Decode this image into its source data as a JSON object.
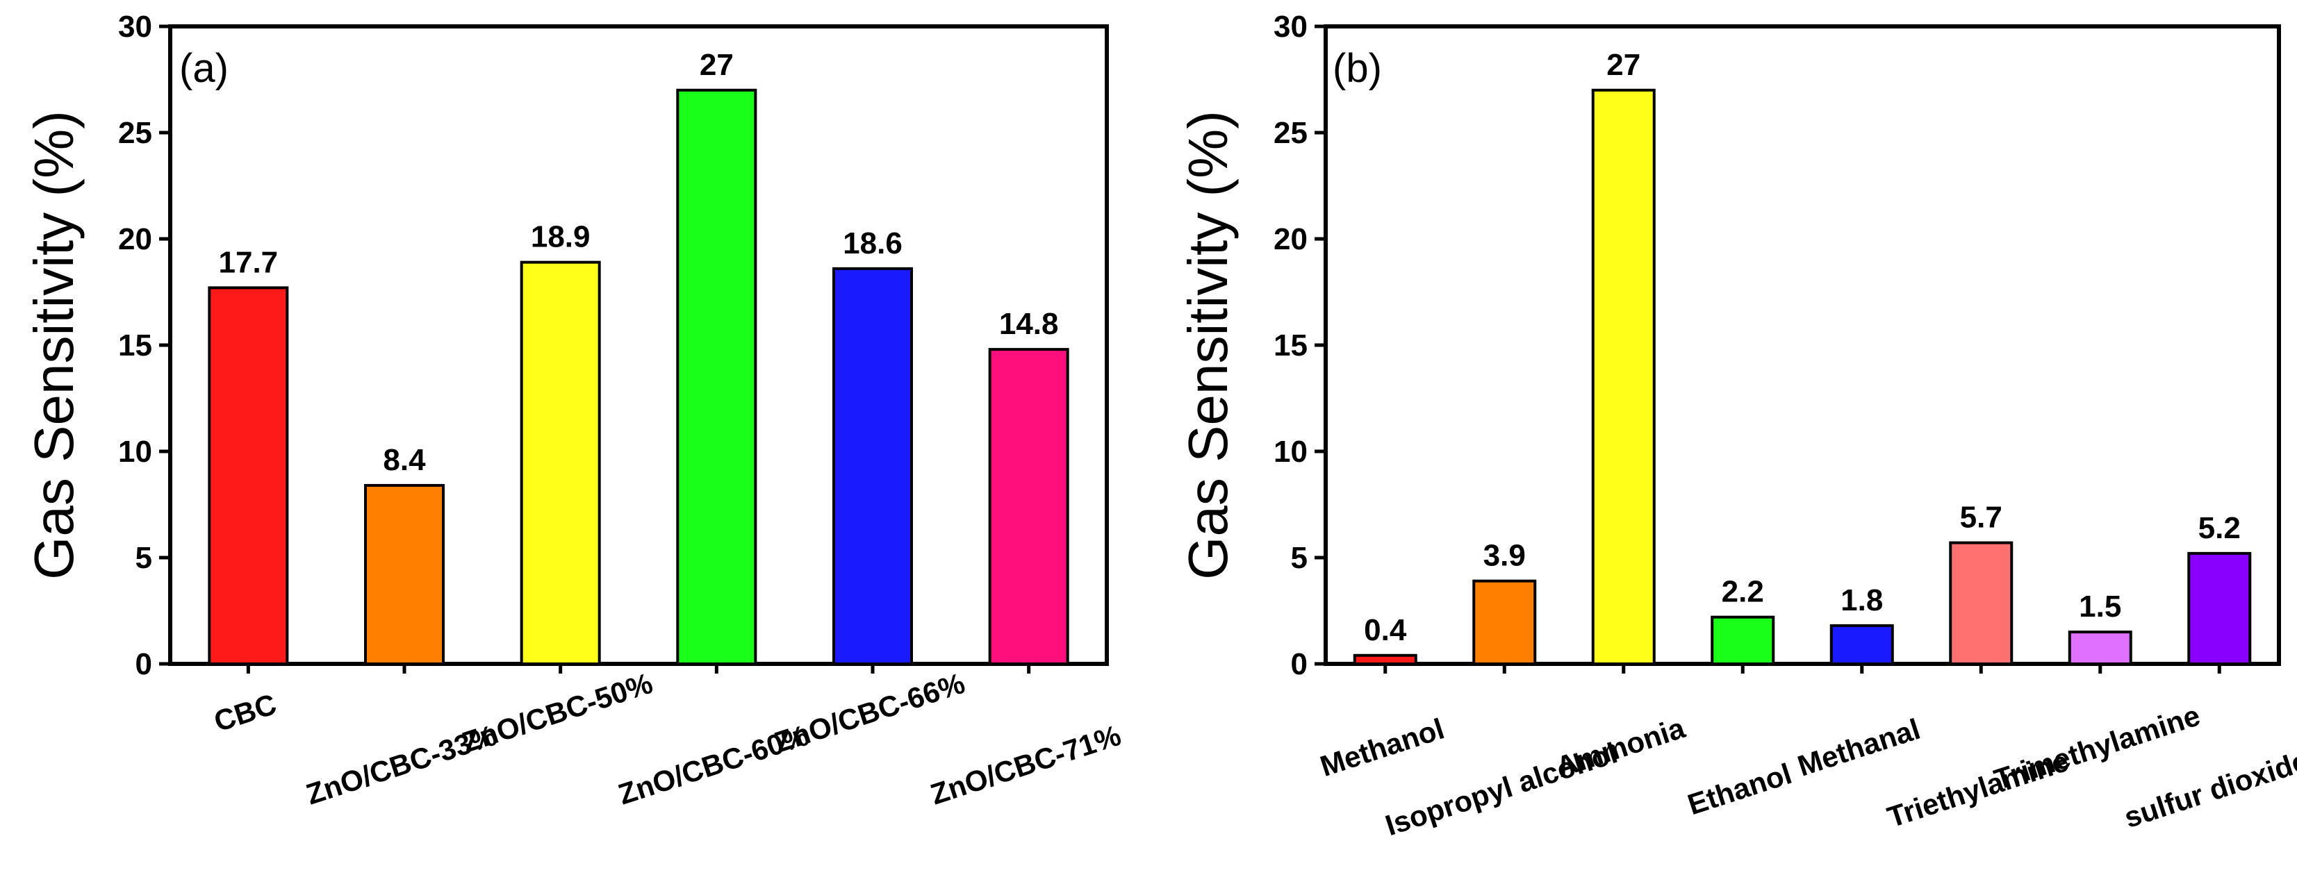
{
  "chart_data": [
    {
      "type": "bar",
      "panel_label": "(a)",
      "title": "",
      "xlabel": "",
      "ylabel": "Gas Sensitivity (%)",
      "ylim": [
        0,
        30
      ],
      "yticks": [
        0,
        5,
        10,
        15,
        20,
        25,
        30
      ],
      "ytick_labels": [
        "0",
        "5",
        "10",
        "15",
        "20",
        "25",
        "30"
      ],
      "categories": [
        "CBC",
        "ZnO/CBC-33%",
        "ZnO/CBC-50%",
        "ZnO/CBC-60%",
        "ZnO/CBC-66%",
        "ZnO/CBC-71%"
      ],
      "values": [
        17.7,
        8.4,
        18.9,
        27,
        18.6,
        14.8
      ],
      "value_labels": [
        "17.7",
        "8.4",
        "18.9",
        "27",
        "18.6",
        "14.8"
      ],
      "colors": [
        "#ff1a1a",
        "#ff8000",
        "#ffff1a",
        "#1aff1a",
        "#1a1aff",
        "#ff0f7b"
      ],
      "grid": false
    },
    {
      "type": "bar",
      "panel_label": "(b)",
      "title": "",
      "xlabel": "",
      "ylabel": "Gas Sensitivity (%)",
      "ylim": [
        0,
        30
      ],
      "yticks": [
        0,
        5,
        10,
        15,
        20,
        25,
        30
      ],
      "ytick_labels": [
        "0",
        "5",
        "10",
        "15",
        "20",
        "25",
        "30"
      ],
      "categories": [
        "Methanol",
        "Isopropyl alcohol",
        "Ammonia",
        "Ethanol",
        "Methanal",
        "Triethylamine",
        "Trimethylamine",
        "sulfur dioxide"
      ],
      "values": [
        0.4,
        3.9,
        27,
        2.2,
        1.8,
        5.7,
        1.5,
        5.2
      ],
      "value_labels": [
        "0.4",
        "3.9",
        "27",
        "2.2",
        "1.8",
        "5.7",
        "1.5",
        "5.2"
      ],
      "colors": [
        "#ff1a1a",
        "#ff8000",
        "#ffff1a",
        "#1aff1a",
        "#1a1aff",
        "#ff7070",
        "#e070ff",
        "#8a00ff"
      ],
      "grid": false
    }
  ]
}
